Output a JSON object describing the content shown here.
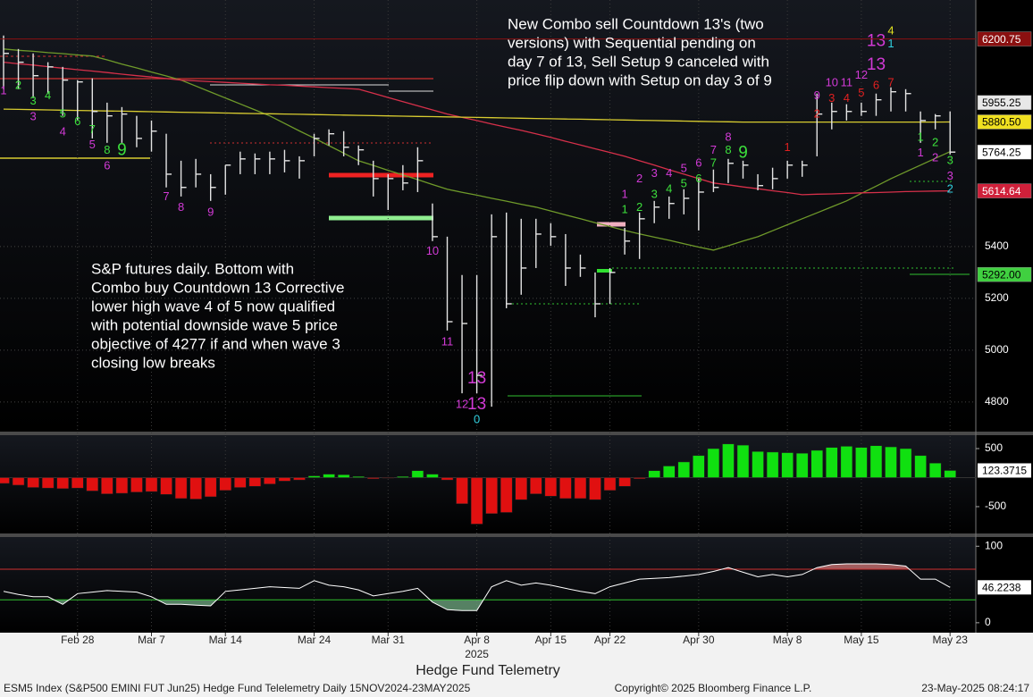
{
  "chart_data": [
    {
      "type": "ohlc",
      "categories": [
        null,
        null,
        null,
        null,
        null,
        "Feb 28",
        null,
        null,
        null,
        null,
        "Mar 7",
        null,
        null,
        null,
        null,
        "Mar 14",
        null,
        null,
        null,
        null,
        null,
        "Mar 24",
        null,
        null,
        null,
        null,
        "Mar 31",
        null,
        null,
        null,
        null,
        null,
        "Apr 8",
        null,
        null,
        null,
        null,
        "Apr 15",
        null,
        null,
        null,
        "Apr 22",
        null,
        null,
        null,
        null,
        null,
        "Apr 30",
        null,
        null,
        null,
        null,
        null,
        "May 8",
        null,
        null,
        null,
        null,
        "May 15",
        null,
        null,
        null,
        null,
        null,
        "May 23"
      ],
      "year_label": {
        "text": "2025",
        "category": 32
      },
      "high": [
        6214,
        6162,
        6145,
        6111,
        6093,
        6042,
        6049,
        5955,
        5938,
        5904,
        5886,
        5835,
        5731,
        5738,
        5679,
        5714,
        5766,
        5759,
        5766,
        5773,
        5748,
        5835,
        5852,
        5845,
        5790,
        5731,
        5679,
        5714,
        5783,
        5566,
        5438,
        5290,
        5290,
        5524,
        5531,
        5507,
        5507,
        5490,
        5448,
        5369,
        5300,
        5317,
        5472,
        5531,
        5576,
        5593,
        5621,
        5662,
        5697,
        5738,
        5731,
        5679,
        5704,
        5731,
        5731,
        5990,
        5955,
        5949,
        5955,
        5990,
        6014,
        6007,
        5921,
        5911,
        5921
      ],
      "low": [
        6007,
        6007,
        5973,
        5990,
        5904,
        5886,
        5817,
        5800,
        5800,
        5783,
        5766,
        5628,
        5593,
        5628,
        5576,
        5600,
        5679,
        5679,
        5679,
        5686,
        5662,
        5748,
        5790,
        5748,
        5714,
        5593,
        5541,
        5617,
        5610,
        5421,
        5076,
        4834,
        4834,
        4782,
        5162,
        5214,
        5317,
        5403,
        5248,
        5283,
        5127,
        5179,
        5369,
        5352,
        5490,
        5507,
        5524,
        5462,
        5610,
        5645,
        5662,
        5617,
        5621,
        5662,
        5669,
        5748,
        5852,
        5886,
        5904,
        5904,
        5921,
        5921,
        5800,
        5852,
        5755
      ],
      "close": [
        6145,
        6111,
        6059,
        6093,
        6042,
        6035,
        5921,
        5904,
        5911,
        5817,
        5845,
        5679,
        5628,
        5679,
        5628,
        5714,
        5738,
        5738,
        5738,
        5731,
        5731,
        5817,
        5835,
        5783,
        5773,
        5662,
        5662,
        5645,
        5731,
        5438,
        5110,
        5103,
        4903,
        5438,
        5179,
        5317,
        5448,
        5438,
        5317,
        5317,
        5179,
        5300,
        5421,
        5507,
        5552,
        5566,
        5586,
        5610,
        5628,
        5721,
        5714,
        5635,
        5662,
        5714,
        5714,
        5911,
        5921,
        5921,
        5921,
        5966,
        5997,
        5990,
        5886,
        5904,
        5764.25
      ],
      "color": "#e4e4e4",
      "ylim": [
        4686,
        6351
      ],
      "yticks": [
        4800,
        5000,
        5200,
        5400
      ],
      "grid": true,
      "series": [
        {
          "color": "#6f9a2a",
          "values": [
            6162,
            6157,
            6153,
            6148,
            6144,
            6139,
            6135,
            6120,
            6104,
            6089,
            6073,
            6058,
            6042,
            6019,
            5996,
            5973,
            5950,
            5927,
            5904,
            5875,
            5846,
            5818,
            5789,
            5760,
            5731,
            5713,
            5694,
            5676,
            5658,
            5639,
            5621,
            5609,
            5598,
            5586,
            5575,
            5563,
            5552,
            5537,
            5522,
            5507,
            5492,
            5477,
            5462,
            5449,
            5436,
            5424,
            5411,
            5398,
            5386,
            5403,
            5421,
            5438,
            5461,
            5484,
            5507,
            5530,
            5553,
            5576,
            5605,
            5633,
            5662,
            5688,
            5714,
            5740,
            5766
          ]
        },
        {
          "color": "#d6304a",
          "values": [
            6111,
            6105,
            6100,
            6094,
            6088,
            6082,
            6077,
            6071,
            6065,
            6059,
            6054,
            6048,
            6042,
            6039,
            6036,
            6033,
            6030,
            6027,
            6024,
            6022,
            6019,
            6016,
            6013,
            6010,
            6007,
            5991,
            5975,
            5959,
            5943,
            5927,
            5911,
            5898,
            5886,
            5873,
            5860,
            5848,
            5835,
            5821,
            5806,
            5792,
            5777,
            5763,
            5748,
            5731,
            5714,
            5696,
            5679,
            5662,
            5645,
            5638,
            5630,
            5623,
            5615,
            5608,
            5600,
            5602,
            5603,
            5605,
            5607,
            5608,
            5610,
            5612,
            5613,
            5614,
            5614.64
          ]
        },
        {
          "color": "#d8cc30",
          "values": [
            5930,
            5929,
            5928,
            5927,
            5926,
            5925,
            5924,
            5923,
            5922,
            5921,
            5920,
            5919,
            5918,
            5917,
            5916,
            5915,
            5914,
            5913,
            5912,
            5911,
            5910,
            5909,
            5908,
            5907,
            5906,
            5905,
            5904,
            5903,
            5902,
            5901,
            5900,
            5899,
            5898,
            5897,
            5896,
            5895,
            5894,
            5893,
            5892,
            5891,
            5890,
            5889,
            5888,
            5887,
            5886,
            5885,
            5884,
            5883,
            5882,
            5881,
            5880,
            5880,
            5880,
            5880,
            5880,
            5880,
            5880,
            5880,
            5880,
            5880,
            5880,
            5880,
            5880,
            5880,
            5880.5
          ]
        }
      ],
      "price_labels": [
        {
          "value": 6200.75,
          "label": "6200.75",
          "bg": "#8b1010",
          "fg": "#ffffff",
          "full_line": true
        },
        {
          "value": 5955.25,
          "label": "5955.25",
          "bg": "#e8e8e8",
          "fg": "#000000",
          "full_line": false
        },
        {
          "value": 5880.5,
          "label": "5880.50",
          "bg": "#f0e020",
          "fg": "#000000",
          "full_line": false
        },
        {
          "value": 5764.25,
          "label": "5764.25",
          "bg": "#ffffff",
          "fg": "#000000",
          "full_line": false
        },
        {
          "value": 5614.64,
          "label": "5614.64",
          "bg": "#d0203a",
          "fg": "#ffffff",
          "full_line": false
        },
        {
          "value": 5292,
          "label": "5292.00",
          "bg": "#40d040",
          "fg": "#000000",
          "full_line": false
        }
      ],
      "counts": [
        {
          "text": "1",
          "color": "#d23ad6",
          "at": 0,
          "price": 6000
        },
        {
          "text": "2",
          "color": "#3ce03c",
          "at": 1,
          "price": 6020
        },
        {
          "text": "3",
          "color": "#3ce03c",
          "at": 2,
          "price": 5960
        },
        {
          "text": "3",
          "color": "#d23ad6",
          "at": 2,
          "price": 5900
        },
        {
          "text": "4",
          "color": "#3ce03c",
          "at": 3,
          "price": 5980
        },
        {
          "text": "5",
          "color": "#3ce03c",
          "at": 4,
          "price": 5910
        },
        {
          "text": "4",
          "color": "#d23ad6",
          "at": 4,
          "price": 5840
        },
        {
          "text": "6",
          "color": "#3ce03c",
          "at": 5,
          "price": 5880
        },
        {
          "text": "7",
          "color": "#3ce03c",
          "at": 6,
          "price": 5850
        },
        {
          "text": "5",
          "color": "#d23ad6",
          "at": 6,
          "price": 5790
        },
        {
          "text": "8",
          "color": "#3ce03c",
          "at": 7,
          "price": 5770
        },
        {
          "text": "6",
          "color": "#d23ad6",
          "at": 7,
          "price": 5710
        },
        {
          "text": "9",
          "color": "#3ce03c",
          "at": 8,
          "price": 5770,
          "big": true
        },
        {
          "text": "7",
          "color": "#d23ad6",
          "at": 11,
          "price": 5590
        },
        {
          "text": "8",
          "color": "#d23ad6",
          "at": 12,
          "price": 5550
        },
        {
          "text": "9",
          "color": "#d23ad6",
          "at": 14,
          "price": 5530
        },
        {
          "text": "10",
          "color": "#d23ad6",
          "at": 29,
          "price": 5380
        },
        {
          "text": "11",
          "color": "#d23ad6",
          "at": 30,
          "price": 5030
        },
        {
          "text": "13",
          "color": "#d23ad6",
          "at": 32,
          "price": 4890,
          "big": true
        },
        {
          "text": "12",
          "color": "#d23ad6",
          "at": 31,
          "price": 4790
        },
        {
          "text": "13",
          "color": "#d23ad6",
          "at": 32,
          "price": 4790,
          "big": true
        },
        {
          "text": "0",
          "color": "#30d0e0",
          "at": 32,
          "price": 4730
        },
        {
          "text": "1",
          "color": "#d23ad6",
          "at": 42,
          "price": 5600
        },
        {
          "text": "1",
          "color": "#3ce03c",
          "at": 42,
          "price": 5540
        },
        {
          "text": "2",
          "color": "#d23ad6",
          "at": 43,
          "price": 5660
        },
        {
          "text": "2",
          "color": "#3ce03c",
          "at": 43,
          "price": 5550
        },
        {
          "text": "3",
          "color": "#d23ad6",
          "at": 44,
          "price": 5680
        },
        {
          "text": "3",
          "color": "#3ce03c",
          "at": 44,
          "price": 5600
        },
        {
          "text": "4",
          "color": "#d23ad6",
          "at": 45,
          "price": 5680
        },
        {
          "text": "4",
          "color": "#3ce03c",
          "at": 45,
          "price": 5620
        },
        {
          "text": "5",
          "color": "#d23ad6",
          "at": 46,
          "price": 5700
        },
        {
          "text": "5",
          "color": "#3ce03c",
          "at": 46,
          "price": 5640
        },
        {
          "text": "6",
          "color": "#d23ad6",
          "at": 47,
          "price": 5720
        },
        {
          "text": "6",
          "color": "#3ce03c",
          "at": 47,
          "price": 5660
        },
        {
          "text": "7",
          "color": "#d23ad6",
          "at": 48,
          "price": 5770
        },
        {
          "text": "7",
          "color": "#3ce03c",
          "at": 48,
          "price": 5720
        },
        {
          "text": "8",
          "color": "#d23ad6",
          "at": 49,
          "price": 5820
        },
        {
          "text": "8",
          "color": "#3ce03c",
          "at": 49,
          "price": 5770
        },
        {
          "text": "9",
          "color": "#3ce03c",
          "at": 50,
          "price": 5760,
          "big": true
        },
        {
          "text": "1",
          "color": "#e02020",
          "at": 53,
          "price": 5780
        },
        {
          "text": "9",
          "color": "#d23ad6",
          "at": 55,
          "price": 5980
        },
        {
          "text": "2",
          "color": "#e02020",
          "at": 55,
          "price": 5910
        },
        {
          "text": "10",
          "color": "#d23ad6",
          "at": 56,
          "price": 6030
        },
        {
          "text": "3",
          "color": "#e02020",
          "at": 56,
          "price": 5970
        },
        {
          "text": "11",
          "color": "#d23ad6",
          "at": 57,
          "price": 6030
        },
        {
          "text": "4",
          "color": "#e02020",
          "at": 57,
          "price": 5970
        },
        {
          "text": "12",
          "color": "#d23ad6",
          "at": 58,
          "price": 6060
        },
        {
          "text": "5",
          "color": "#e02020",
          "at": 58,
          "price": 5990
        },
        {
          "text": "13",
          "color": "#d23ad6",
          "at": 59,
          "price": 6190,
          "big": true
        },
        {
          "text": "13",
          "color": "#d23ad6",
          "at": 59,
          "price": 6100,
          "big": true
        },
        {
          "text": "6",
          "color": "#e02020",
          "at": 59,
          "price": 6020
        },
        {
          "text": "4",
          "color": "#e0e020",
          "at": 60,
          "price": 6230
        },
        {
          "text": "1",
          "color": "#30d0e0",
          "at": 60,
          "price": 6180
        },
        {
          "text": "7",
          "color": "#e02020",
          "at": 60,
          "price": 6030
        },
        {
          "text": "1",
          "color": "#3ce03c",
          "at": 62,
          "price": 5820
        },
        {
          "text": "2",
          "color": "#3ce03c",
          "at": 63,
          "price": 5800
        },
        {
          "text": "3",
          "color": "#3ce03c",
          "at": 64,
          "price": 5730
        },
        {
          "text": "1",
          "color": "#d23ad6",
          "at": 62,
          "price": 5760
        },
        {
          "text": "2",
          "color": "#d23ad6",
          "at": 63,
          "price": 5740
        },
        {
          "text": "3",
          "color": "#d23ad6",
          "at": 64,
          "price": 5670
        },
        {
          "text": "2",
          "color": "#30d0e0",
          "at": 64,
          "price": 5620
        }
      ],
      "notes": [
        {
          "lines": [
            "New Combo sell Countdown 13's (two",
            "versions) with Sequential pending on",
            "day 7 of 13, Sell Setup 9 canceled with",
            "price flip down with Setup on day 3 of 9"
          ]
        },
        {
          "lines": [
            "S&P futures daily. Bottom with",
            "Combo buy Countdown 13 Corrective",
            "lower high wave 4 of 5 now qualified",
            "with potential downside wave 5 price",
            "objective of 4277 if and when wave 3",
            "closing low breaks"
          ]
        }
      ]
    },
    {
      "type": "bar",
      "pos_color": "#10e010",
      "neg_color": "#e01010",
      "values": [
        -100,
        -130,
        -170,
        -180,
        -190,
        -180,
        -230,
        -280,
        -270,
        -250,
        -240,
        -290,
        -360,
        -370,
        -330,
        -220,
        -170,
        -150,
        -110,
        -60,
        -40,
        30,
        60,
        50,
        20,
        -20,
        -10,
        20,
        120,
        60,
        -40,
        -450,
        -800,
        -620,
        -600,
        -380,
        -280,
        -320,
        -360,
        -360,
        -380,
        -220,
        -150,
        -20,
        120,
        200,
        270,
        380,
        500,
        580,
        560,
        450,
        440,
        430,
        420,
        470,
        520,
        540,
        520,
        550,
        530,
        500,
        380,
        250,
        123.3715
      ],
      "ylim": [
        -962,
        731
      ],
      "yticks": [
        500,
        -500
      ]
    },
    {
      "type": "line",
      "color": "#ffffff",
      "values": [
        41,
        37,
        34,
        34,
        24,
        38,
        40,
        42,
        41,
        40,
        34,
        24,
        24,
        23,
        22,
        41,
        43,
        45,
        47,
        46,
        45,
        55,
        49,
        47,
        43,
        35,
        38,
        41,
        45,
        27,
        17,
        16,
        16,
        47,
        55,
        49,
        52,
        49,
        45,
        41,
        38,
        47,
        52,
        57,
        58,
        59,
        61,
        63,
        67,
        72,
        66,
        60,
        63,
        60,
        63,
        72,
        76,
        77,
        77,
        77,
        76,
        74,
        57,
        57,
        46.2238
      ],
      "ylim": [
        -13,
        112
      ],
      "yticks": [
        100,
        0
      ],
      "upper": 70,
      "lower": 30,
      "upper_color": "#d03030",
      "lower_color": "#30c030"
    }
  ],
  "caption": "Hedge Fund Telemetry",
  "footer": {
    "left": "ESM5 Index (S&P500 EMINI FUT  Jun25) Hedge Fund Telelemetry  Daily 15NOV2024-23MAY2025",
    "center": "Copyright© 2025 Bloomberg Finance L.P.",
    "right": "23-May-2025 08:24:17"
  }
}
